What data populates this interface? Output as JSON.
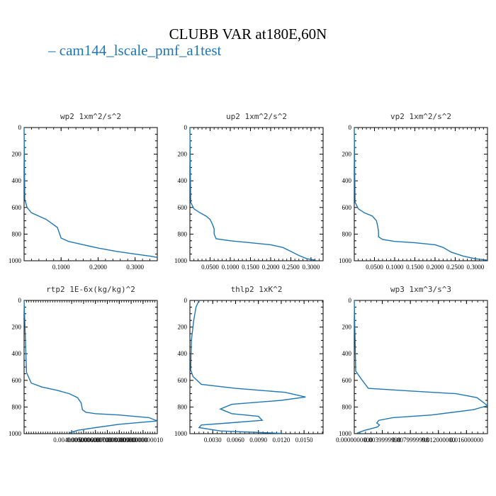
{
  "figure": {
    "title": "CLUBB VAR at180E,60N",
    "legend": [
      {
        "name": "cam144_lscale_pmf_a1test",
        "color": "#1f77b4"
      }
    ]
  },
  "chart_data": [
    {
      "type": "line",
      "title": "wp2  1xm^2/s^2",
      "xlim": [
        0,
        0.36
      ],
      "ylim": [
        1000,
        0
      ],
      "xticks": [
        0.1,
        0.2,
        0.3
      ],
      "xtick_labels": [
        "0.1000",
        "0.2000",
        "0.3000"
      ],
      "yticks": [
        0,
        200,
        400,
        600,
        800,
        1000
      ],
      "ytick_labels": [
        "0",
        "200",
        "400",
        "600",
        "800",
        "1000"
      ],
      "series": [
        {
          "name": "cam144_lscale_pmf_a1test",
          "x": [
            0,
            0.002,
            0.008,
            0.02,
            0.04,
            0.06,
            0.075,
            0.09,
            0.095,
            0.1,
            0.12,
            0.16,
            0.2,
            0.25,
            0.3,
            0.34,
            0.36
          ],
          "y": [
            0,
            540,
            600,
            640,
            665,
            690,
            720,
            750,
            790,
            830,
            855,
            880,
            905,
            930,
            950,
            965,
            975
          ]
        }
      ]
    },
    {
      "type": "line",
      "title": "up2  1xm^2/s^2",
      "xlim": [
        0,
        0.33
      ],
      "ylim": [
        1000,
        0
      ],
      "xticks": [
        0.05,
        0.1,
        0.15,
        0.2,
        0.25,
        0.3
      ],
      "xtick_labels": [
        "0.0500",
        "0.1000",
        "0.1500",
        "0.2000",
        "0.2500",
        "0.3000"
      ],
      "yticks": [
        0,
        200,
        400,
        600,
        800,
        1000
      ],
      "ytick_labels": [
        "0",
        "200",
        "400",
        "600",
        "800",
        "1000"
      ],
      "series": [
        {
          "name": "cam144_lscale_pmf_a1test",
          "x": [
            0,
            0.002,
            0.01,
            0.025,
            0.04,
            0.05,
            0.055,
            0.06,
            0.06,
            0.065,
            0.1,
            0.15,
            0.2,
            0.23,
            0.25,
            0.27,
            0.29,
            0.31
          ],
          "y": [
            0,
            560,
            610,
            640,
            665,
            690,
            720,
            760,
            800,
            835,
            850,
            865,
            880,
            900,
            930,
            960,
            985,
            995
          ]
        }
      ]
    },
    {
      "type": "line",
      "title": "vp2  1xm^2/s^2",
      "xlim": [
        0,
        0.33
      ],
      "ylim": [
        1000,
        0
      ],
      "xticks": [
        0.05,
        0.1,
        0.15,
        0.2,
        0.25,
        0.3
      ],
      "xtick_labels": [
        "0.0500",
        "0.1000",
        "0.1500",
        "0.2000",
        "0.2500",
        "0.3000"
      ],
      "yticks": [
        0,
        200,
        400,
        600,
        800,
        1000
      ],
      "ytick_labels": [
        "0",
        "200",
        "400",
        "600",
        "800",
        "1000"
      ],
      "series": [
        {
          "name": "cam144_lscale_pmf_a1test",
          "x": [
            0,
            0.002,
            0.01,
            0.025,
            0.045,
            0.055,
            0.058,
            0.06,
            0.06,
            0.07,
            0.1,
            0.15,
            0.2,
            0.22,
            0.24,
            0.27,
            0.3,
            0.33
          ],
          "y": [
            0,
            560,
            610,
            640,
            665,
            700,
            740,
            780,
            820,
            840,
            855,
            865,
            880,
            900,
            935,
            965,
            985,
            995
          ]
        }
      ]
    },
    {
      "type": "line",
      "title": "rtp2  1E-6x(kg/kg)^2",
      "xlim": [
        0,
        0.0112
      ],
      "ylim": [
        1000,
        0
      ],
      "xticks": [
        0.004,
        0.005,
        0.006,
        0.007,
        0.008,
        0.009,
        0.01
      ],
      "xtick_labels": [
        "0.0040000000",
        "0.005000000",
        "0.006000000",
        "0.007000000",
        "0.008000000",
        "0.009000000",
        "0.01000000010"
      ],
      "yticks": [
        0,
        200,
        400,
        600,
        800,
        1000
      ],
      "ytick_labels": [
        "0",
        "200",
        "400",
        "600",
        "800",
        "1000"
      ],
      "series": [
        {
          "name": "cam144_lscale_pmf_a1test",
          "x": [
            0,
            0.0002,
            0.0006,
            0.0015,
            0.0028,
            0.0038,
            0.0045,
            0.0048,
            0.0049,
            0.0052,
            0.006,
            0.008,
            0.0105,
            0.0112,
            0.008,
            0.006,
            0.0045,
            0.0038
          ],
          "y": [
            0,
            540,
            620,
            650,
            675,
            700,
            730,
            770,
            820,
            840,
            850,
            860,
            880,
            905,
            930,
            955,
            975,
            995
          ]
        }
      ]
    },
    {
      "type": "line",
      "title": "thlp2  1xK^2",
      "xlim": [
        0,
        0.0175
      ],
      "ylim": [
        1000,
        0
      ],
      "xticks": [
        0.003,
        0.006,
        0.009,
        0.012,
        0.015
      ],
      "xtick_labels": [
        "0.0030",
        "0.0060",
        "0.0090",
        "0.0120",
        "0.0150"
      ],
      "yticks": [
        0,
        200,
        400,
        600,
        800,
        1000
      ],
      "ytick_labels": [
        "0",
        "200",
        "400",
        "600",
        "800",
        "1000"
      ],
      "series": [
        {
          "name": "cam144_lscale_pmf_a1test",
          "x": [
            0.0012,
            0.0008,
            0.0005,
            0.0002,
            0.0001,
            0.0004,
            0.0015,
            0.006,
            0.0125,
            0.0152,
            0.012,
            0.0055,
            0.004,
            0.0055,
            0.009,
            0.0095,
            0.005,
            0.0015,
            0.0012,
            0.004,
            0.012
          ],
          "y": [
            0,
            50,
            150,
            300,
            520,
            570,
            630,
            660,
            690,
            725,
            750,
            780,
            815,
            850,
            870,
            900,
            920,
            935,
            955,
            980,
            998
          ]
        }
      ]
    },
    {
      "type": "line",
      "title": "wp3  1xm^3/s^3",
      "xlim": [
        0,
        0.019
      ],
      "ylim": [
        1000,
        0
      ],
      "xticks": [
        0,
        0.004,
        0.008,
        0.012,
        0.016
      ],
      "xtick_labels": [
        "0.0000000000",
        "0.0039999998",
        "0.0079999998",
        "0.012000000",
        "0.016000000"
      ],
      "yticks": [
        0,
        200,
        400,
        600,
        800,
        1000
      ],
      "ytick_labels": [
        "0",
        "200",
        "400",
        "600",
        "800",
        "1000"
      ],
      "series": [
        {
          "name": "cam144_lscale_pmf_a1test",
          "x": [
            0,
            0.0002,
            0.001,
            0.002,
            0.008,
            0.0145,
            0.0175,
            0.019,
            0.017,
            0.011,
            0.0055,
            0.0035,
            0.0032,
            0.0036,
            0.0033,
            0.0015,
            0.0003
          ],
          "y": [
            0,
            530,
            590,
            660,
            680,
            700,
            730,
            790,
            820,
            860,
            880,
            900,
            920,
            935,
            950,
            975,
            998
          ]
        }
      ]
    }
  ]
}
